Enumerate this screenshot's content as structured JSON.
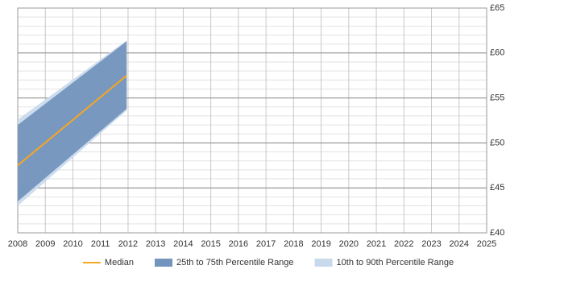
{
  "chart_data": {
    "type": "percentile-band",
    "x": [
      2008,
      2011.95
    ],
    "series": [
      {
        "name": "Median",
        "color": "#f5a623",
        "values": [
          47.5,
          57.5
        ]
      },
      {
        "name": "25th to 75th Percentile Range",
        "color": "#7394bd",
        "low": [
          43.5,
          53.8
        ],
        "high": [
          52,
          61.3
        ]
      },
      {
        "name": "10th to 90th Percentile Range",
        "color": "#c9d9ec",
        "low": [
          43,
          53.6
        ],
        "high": [
          52.6,
          61.4
        ]
      }
    ],
    "xlim": [
      2008,
      2025
    ],
    "xticks": [
      2008,
      2009,
      2010,
      2011,
      2012,
      2013,
      2014,
      2015,
      2016,
      2017,
      2018,
      2019,
      2020,
      2021,
      2022,
      2023,
      2024,
      2025
    ],
    "ylim": [
      40,
      65
    ],
    "yticks": [
      {
        "value": 40,
        "label": "£40"
      },
      {
        "value": 45,
        "label": "£45"
      },
      {
        "value": 50,
        "label": "£50"
      },
      {
        "value": 55,
        "label": "£55"
      },
      {
        "value": 60,
        "label": "£60"
      },
      {
        "value": 65,
        "label": "£65"
      }
    ],
    "grid": true,
    "minor_grid_step": 1,
    "legend": "bottom"
  }
}
